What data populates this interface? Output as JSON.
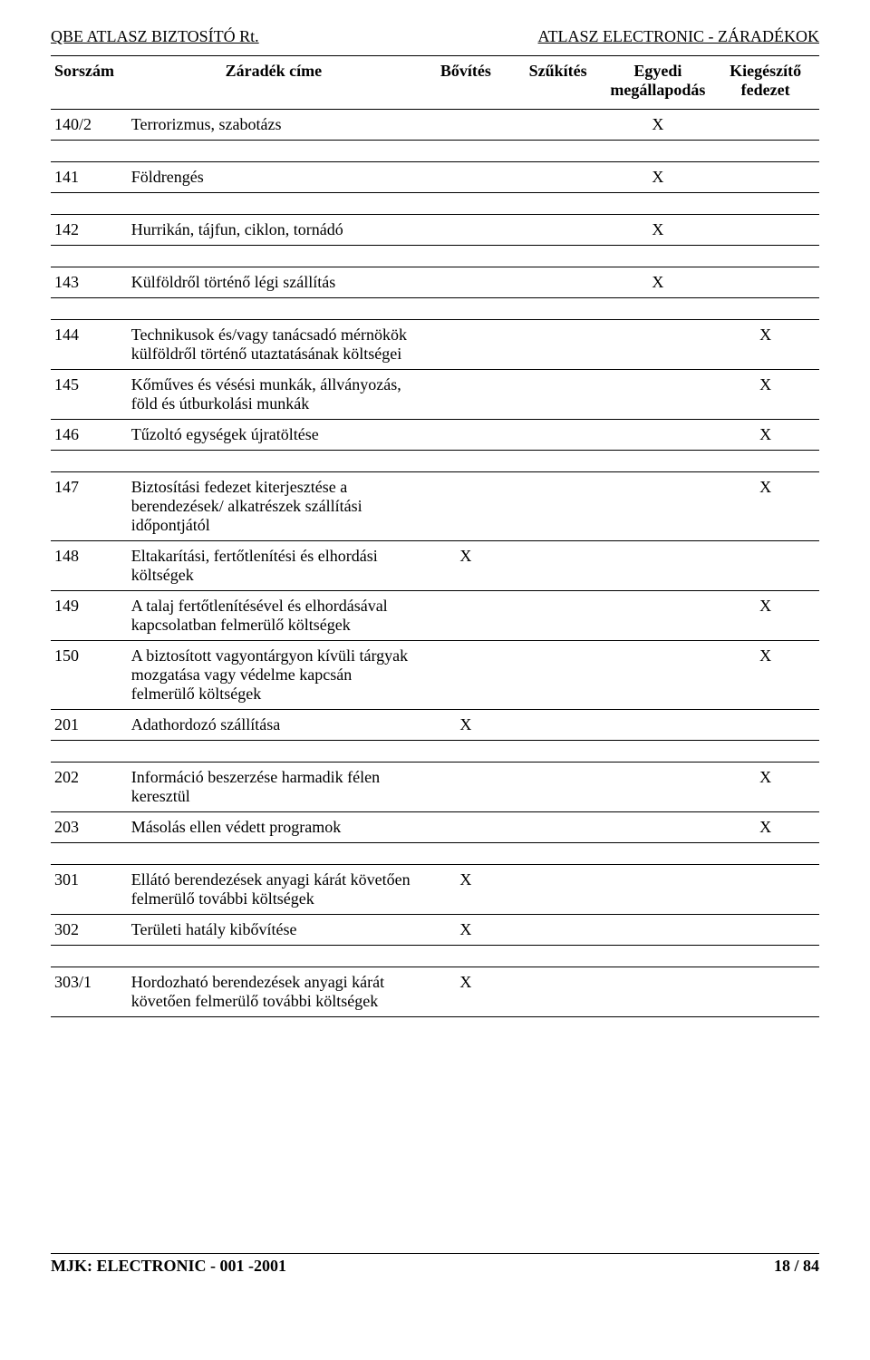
{
  "header": {
    "left": "QBE ATLASZ BIZTOSÍTÓ Rt.",
    "right": "ATLASZ ELECTRONIC - ZÁRADÉKOK"
  },
  "columns": {
    "sorszam": "Sorszám",
    "cim": "Záradék címe",
    "bovites": "Bővítés",
    "szukites": "Szűkítés",
    "egyedi1": "Egyedi",
    "egyedi2": "megállapodás",
    "kieg1": "Kiegészítő",
    "kieg2": "fedezet"
  },
  "mark": "X",
  "rows": {
    "r0": {
      "n": "140/2",
      "t": "Terrorizmus, szabotázs"
    },
    "r1": {
      "n": "141",
      "t": "Földrengés"
    },
    "r2": {
      "n": "142",
      "t": "Hurrikán, tájfun, ciklon, tornádó"
    },
    "r3": {
      "n": "143",
      "t": "Külföldről történő légi szállítás"
    },
    "r4": {
      "n": "144",
      "t": "Technikusok és/vagy tanácsadó mérnökök külföldről történő utaztatásának költségei"
    },
    "r5": {
      "n": "145",
      "t": "Kőműves és vésési munkák, állványozás, föld és útburkolási munkák"
    },
    "r6": {
      "n": "146",
      "t": "Tűzoltó egységek újratöltése"
    },
    "r7": {
      "n": "147",
      "t": "Biztosítási fedezet kiterjesztése a berendezések/ alkatrészek szállítási időpontjától"
    },
    "r8": {
      "n": "148",
      "t": "Eltakarítási, fertőtlenítési és elhordási költségek"
    },
    "r9": {
      "n": "149",
      "t": "A talaj fertőtlenítésével és elhordásával kapcsolatban felmerülő költségek"
    },
    "r10": {
      "n": "150",
      "t": "A biztosított vagyontárgyon kívüli tárgyak mozgatása vagy védelme kapcsán felmerülő költségek"
    },
    "r11": {
      "n": "201",
      "t": "Adathordozó szállítása"
    },
    "r12": {
      "n": "202",
      "t": "Információ beszerzése harmadik félen keresztül"
    },
    "r13": {
      "n": "203",
      "t": "Másolás ellen védett programok"
    },
    "r14": {
      "n": "301",
      "t": "Ellátó berendezések anyagi kárát követően felmerülő további költségek"
    },
    "r15": {
      "n": "302",
      "t": "Területi hatály kibővítése"
    },
    "r16": {
      "n": "303/1",
      "t": "Hordozható berendezések anyagi kárát követően felmerülő további költségek"
    }
  },
  "footer": {
    "left": "MJK: ELECTRONIC - 001 -2001",
    "right": "18 / 84"
  }
}
